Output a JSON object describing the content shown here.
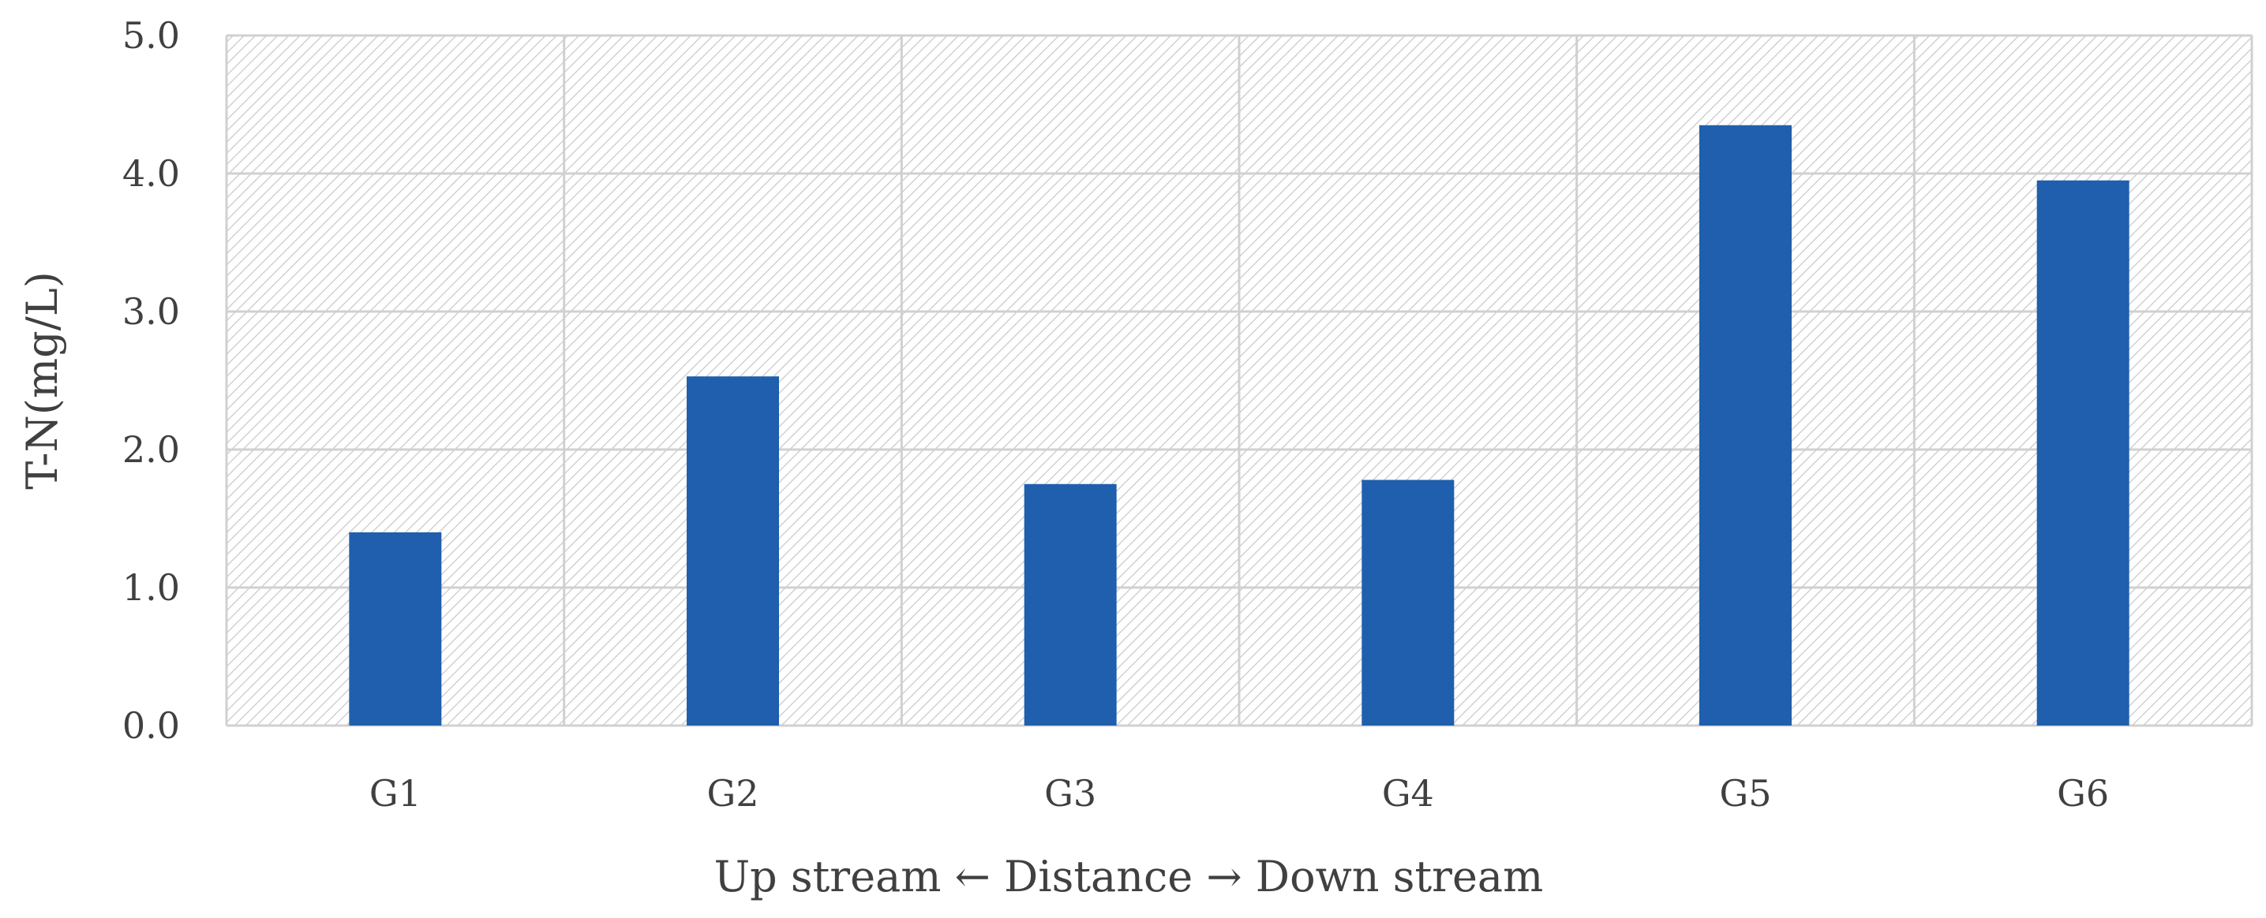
{
  "chart_data": {
    "type": "bar",
    "categories": [
      "G1",
      "G2",
      "G3",
      "G4",
      "G5",
      "G6"
    ],
    "values": [
      1.4,
      2.53,
      1.75,
      1.78,
      4.35,
      3.95
    ],
    "xlabel": "Up stream ← Distance → Down stream",
    "ylabel": "T-N(mg/L)",
    "ylim": [
      0,
      5
    ],
    "yticks": [
      "0.0",
      "1.0",
      "2.0",
      "3.0",
      "4.0",
      "5.0"
    ],
    "grid": true,
    "bar_color": "#1f5fad",
    "background_pattern": "diagonal-hatch"
  }
}
